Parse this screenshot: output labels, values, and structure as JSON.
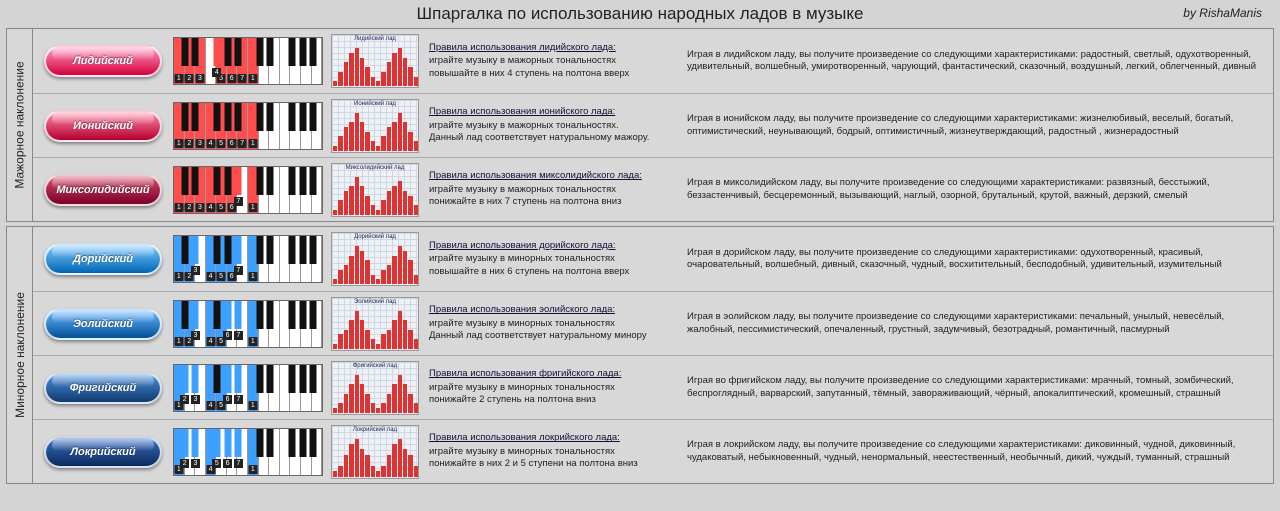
{
  "title": "Шпаргалка по использованию народных ладов в музыке",
  "byline": "by RishaManis",
  "groups": [
    {
      "label": "Мажорное наклонение",
      "rows": [
        {
          "name": "Лидийский",
          "pill_gradient": [
            "#ff9ac4",
            "#d4003c"
          ],
          "degree_bg": "#ff4d4d",
          "key_highlights": [
            0,
            2,
            4,
            6,
            7,
            9,
            11,
            12
          ],
          "chart_label": "Лидийский лад",
          "chart_values": [
            1,
            3,
            5,
            7,
            8,
            6,
            4,
            2,
            1,
            3,
            5,
            7,
            8,
            6,
            4,
            2
          ],
          "chart_bar_color": "#d33",
          "rule_title": "Правила использования лидийского лада:",
          "rule1": "играйте музыку в мажорных тональностях",
          "rule2": "повышайте в них 4 ступень на полтона вверх",
          "desc": "Играя в лидийском ладу, вы получите произведение со следующими характеристиками: радостный, светлый, одухотворенный, удивительный, волшебный, умиротворенный, чарующий, фантастический, сказочный, воздушный, легкий, облегченный, дивный"
        },
        {
          "name": "Ионийский",
          "pill_gradient": [
            "#ff8aa8",
            "#b30030"
          ],
          "degree_bg": "#ff4d4d",
          "key_highlights": [
            0,
            2,
            4,
            5,
            7,
            9,
            11,
            12
          ],
          "chart_label": "Ионийский лад",
          "chart_values": [
            1,
            3,
            5,
            6,
            8,
            6,
            4,
            2,
            1,
            3,
            5,
            6,
            8,
            6,
            4,
            2
          ],
          "chart_bar_color": "#d33",
          "rule_title": "Правила использования ионийского лада:",
          "rule1": "играйте музыку в мажорных тональностях.",
          "rule2": "Данный лад соответствует натуральному мажору.",
          "desc": "Играя в ионийском ладу, вы получите произведение со следующими характеристиками: жизнелюбивый, веселый, богатый, оптимистический, неунывающий, бодрый, оптимистичный, жизнеутверждающий, радостный , жизнерадостный"
        },
        {
          "name": "Миксолидийский",
          "pill_gradient": [
            "#d44a6a",
            "#7a002a"
          ],
          "degree_bg": "#ff4d4d",
          "key_highlights": [
            0,
            2,
            4,
            5,
            7,
            9,
            10,
            12
          ],
          "chart_label": "Миксолидийский лад",
          "chart_values": [
            1,
            3,
            5,
            6,
            8,
            6,
            4,
            2,
            1,
            3,
            5,
            6,
            7,
            5,
            4,
            2
          ],
          "chart_bar_color": "#d33",
          "rule_title": "Правила использования миксолидийского лада:",
          "rule1": "играйте музыку в мажорных тональностях",
          "rule2": "понижайте в них 7 ступень на полтона вниз",
          "desc": "Играя в миксолидийском ладу, вы получите произведение со следующими характеристиками: развязный, бесстыжий, беззастенчивый, бесцеремонный, вызывающий, наглый, озорной, брутальный, крутой, важный, дерзкий, смелый"
        }
      ]
    },
    {
      "label": "Минорное наклонение",
      "rows": [
        {
          "name": "Дорийский",
          "pill_gradient": [
            "#7ec8ff",
            "#0066b3"
          ],
          "degree_bg": "#3da0ff",
          "key_highlights": [
            0,
            2,
            3,
            5,
            7,
            9,
            10,
            12
          ],
          "chart_label": "Дорийский лад",
          "chart_values": [
            1,
            3,
            4,
            6,
            8,
            7,
            5,
            2,
            1,
            3,
            4,
            6,
            8,
            7,
            5,
            2
          ],
          "chart_bar_color": "#d33",
          "rule_title": "Правила использования дорийского лада:",
          "rule1": "играйте музыку в минорных тональностях",
          "rule2": "повышайте в них 6 ступень на полтона вверх",
          "desc": "Играя в дорийском ладу, вы получите произведение со следующими характеристиками: одухотворенный, красивый, очаровательный, волшебный, дивный, сказочный, чудный, восхитительный, бесподобный, удивительный, изумительный"
        },
        {
          "name": "Эолийский",
          "pill_gradient": [
            "#6ab8ff",
            "#004f99"
          ],
          "degree_bg": "#3da0ff",
          "key_highlights": [
            0,
            2,
            3,
            5,
            7,
            8,
            10,
            12
          ],
          "chart_label": "Эолийский лад",
          "chart_values": [
            1,
            3,
            4,
            6,
            8,
            6,
            4,
            2,
            1,
            3,
            4,
            6,
            8,
            6,
            4,
            2
          ],
          "chart_bar_color": "#d33",
          "rule_title": "Правила использования эолийского лада:",
          "rule1": "играйте музыку в минорных тональностях",
          "rule2": "Данный лад соответствует натуральному минору",
          "desc": "Играя в эолийском ладу, вы получите произведение со следующими характеристиками: печальный, унылый, невесёлый, жалобный, пессимистический, опечаленный, грустный, задумчивый, безотрадный, романтичный, пасмурный"
        },
        {
          "name": "Фригийский",
          "pill_gradient": [
            "#4b8fd9",
            "#103a70"
          ],
          "degree_bg": "#3da0ff",
          "key_highlights": [
            0,
            1,
            3,
            5,
            7,
            8,
            10,
            12
          ],
          "chart_label": "Фригийский лад",
          "chart_values": [
            1,
            2,
            4,
            6,
            8,
            6,
            4,
            2,
            1,
            2,
            4,
            6,
            8,
            6,
            4,
            2
          ],
          "chart_bar_color": "#d33",
          "rule_title": "Правила использования фригийского лада:",
          "rule1": "играйте музыку в минорных тональностях",
          "rule2": "понижайте 2 ступень на полтона вниз",
          "desc": "Играя во фригийском ладу, вы получите произведение со следующими характеристиками: мрачный, томный, зомбический, беспроглядный, варварский, запутанный, тёмный, завораживающий, чёрный, апокалиптический, кромешный, страшный"
        },
        {
          "name": "Локрийский",
          "pill_gradient": [
            "#3a6fc4",
            "#0a2a5a"
          ],
          "degree_bg": "#3da0ff",
          "key_highlights": [
            0,
            1,
            3,
            5,
            6,
            8,
            10,
            12
          ],
          "chart_label": "Локрийский лад",
          "chart_values": [
            1,
            2,
            4,
            6,
            7,
            5,
            4,
            2,
            1,
            2,
            4,
            6,
            7,
            5,
            4,
            2
          ],
          "chart_bar_color": "#d33",
          "rule_title": "Правила использования локрийского лада:",
          "rule1": "играйте музыку в минорных тональностях",
          "rule2": "понижайте в них 2 и 5 ступени на полтона вниз",
          "desc": "Играя в локрийском ладу, вы получите произведение со следующими характеристиками: диковинный, чудной, диковинный, чудаковатый, небыкновенный, чудный, ненормальный, неестественный, необычный, дикий, чуждый, туманный, страшный"
        }
      ]
    }
  ],
  "white_key_count": 14,
  "black_key_positions": [
    1,
    2,
    4,
    5,
    6,
    8,
    9,
    11,
    12,
    13
  ],
  "semitone_is_white": [
    true,
    false,
    true,
    false,
    true,
    true,
    false,
    true,
    false,
    true,
    false,
    true,
    true,
    false,
    true,
    false,
    true,
    true,
    false,
    true,
    false,
    true,
    false,
    true
  ],
  "semitone_white_index": [
    0,
    null,
    1,
    null,
    2,
    3,
    null,
    4,
    null,
    5,
    null,
    6,
    7,
    null,
    8,
    null,
    9,
    10,
    null,
    11,
    null,
    12,
    null,
    13
  ]
}
